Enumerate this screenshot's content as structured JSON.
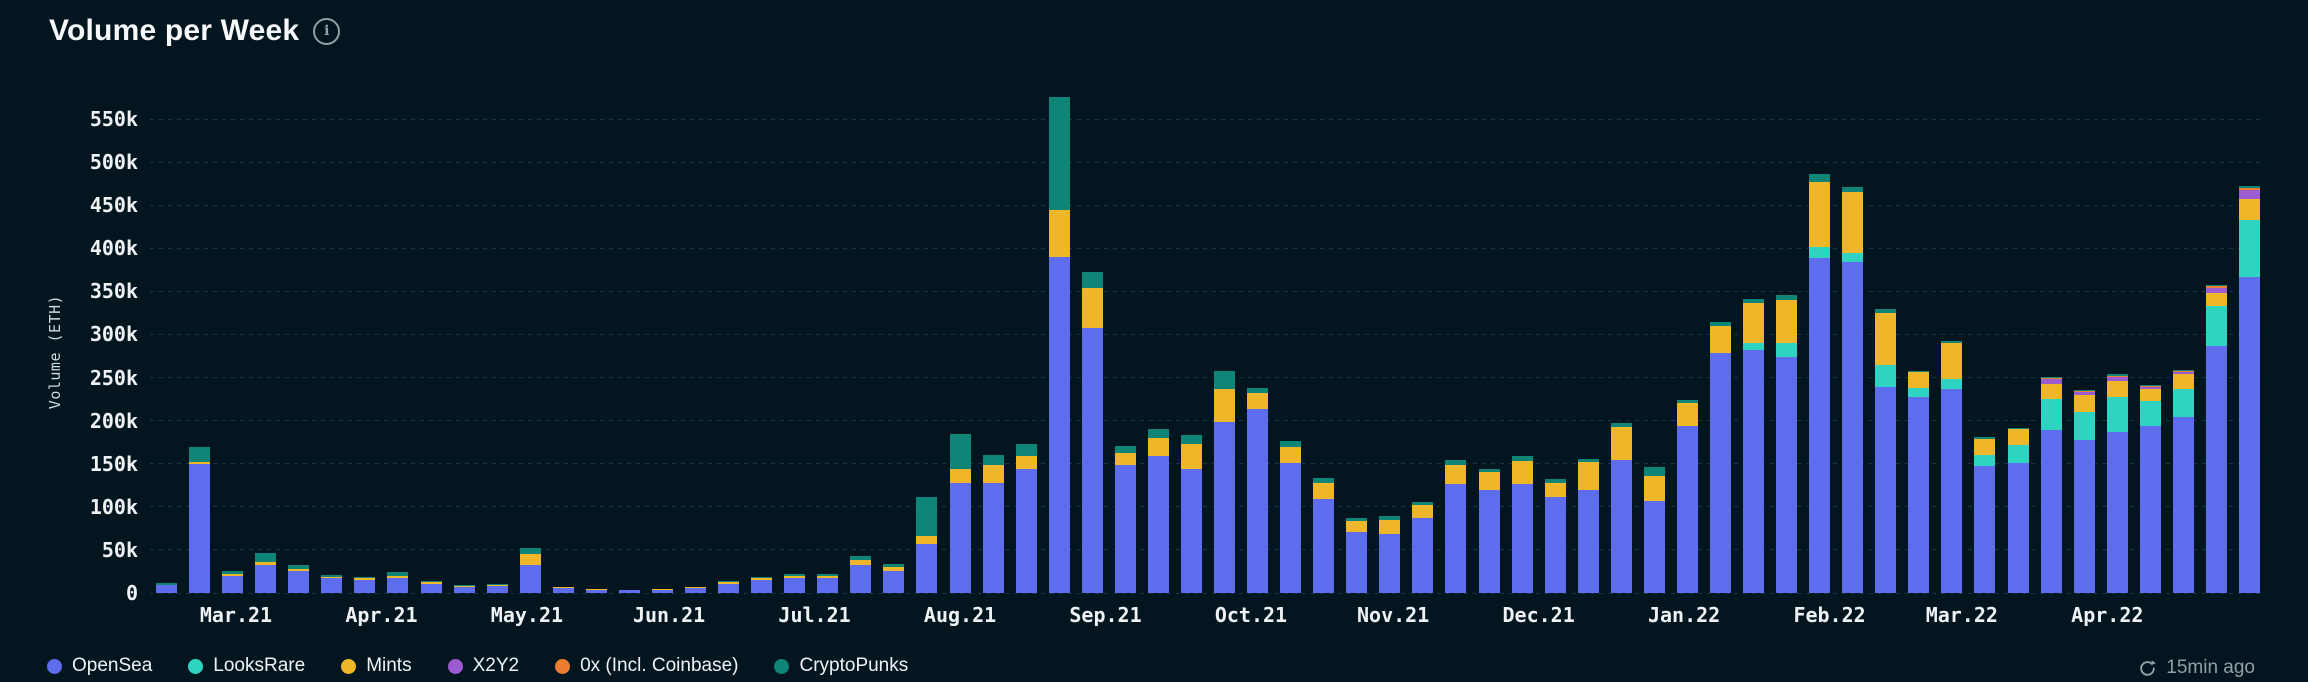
{
  "header": {
    "title": "Volume per Week"
  },
  "footer": {
    "updated": "15min ago"
  },
  "theme": {
    "background": "#03161f",
    "grid": "#163641",
    "text": "#eef2f4",
    "muted": "#8ea0a8",
    "title": "#f6f8f9"
  },
  "chart_data": {
    "type": "bar",
    "stacked": true,
    "title": "Volume per Week",
    "xlabel": "",
    "ylabel": "Volume (ETH)",
    "ylim": [
      0,
      550000
    ],
    "grid": true,
    "legend_position": "bottom",
    "n_weeks": 64,
    "y_ticks": [
      0,
      50000,
      100000,
      150000,
      200000,
      250000,
      300000,
      350000,
      400000,
      450000,
      500000,
      550000
    ],
    "y_tick_labels": [
      "0",
      "50k",
      "100k",
      "150k",
      "200k",
      "250k",
      "300k",
      "350k",
      "400k",
      "450k",
      "500k",
      "550k"
    ],
    "x_ticks": [
      {
        "label": "Mar.21",
        "index": 2.1
      },
      {
        "label": "Apr.21",
        "index": 6.5
      },
      {
        "label": "May.21",
        "index": 10.9
      },
      {
        "label": "Jun.21",
        "index": 15.2
      },
      {
        "label": "Jul.21",
        "index": 19.6
      },
      {
        "label": "Aug.21",
        "index": 24.0
      },
      {
        "label": "Sep.21",
        "index": 28.4
      },
      {
        "label": "Oct.21",
        "index": 32.8
      },
      {
        "label": "Nov.21",
        "index": 37.1
      },
      {
        "label": "Dec.21",
        "index": 41.5
      },
      {
        "label": "Jan.22",
        "index": 45.9
      },
      {
        "label": "Feb.22",
        "index": 50.3
      },
      {
        "label": "Mar.22",
        "index": 54.3
      },
      {
        "label": "Apr.22",
        "index": 58.7
      }
    ],
    "series": [
      {
        "name": "OpenSea",
        "color": "#5e6ded",
        "values": [
          9000,
          150000,
          20000,
          33000,
          25000,
          17000,
          15000,
          18000,
          11000,
          7500,
          8000,
          33000,
          5500,
          4000,
          3000,
          4000,
          5500,
          11000,
          15000,
          17000,
          17000,
          32000,
          26000,
          57000,
          128000,
          128000,
          144000,
          390000,
          308000,
          149000,
          159000,
          144000,
          199000,
          214000,
          151000,
          109000,
          71000,
          69000,
          87000,
          127000,
          119000,
          127000,
          111000,
          119000,
          154000,
          107000,
          194000,
          279000,
          282000,
          274000,
          389000,
          384000,
          239000,
          227000,
          237000,
          147000,
          151000,
          189000,
          177000,
          187000,
          194000,
          204000,
          287000,
          367000
        ]
      },
      {
        "name": "LooksRare",
        "color": "#2fd3c1",
        "values": [
          0,
          0,
          0,
          0,
          0,
          0,
          0,
          0,
          0,
          0,
          0,
          0,
          0,
          0,
          0,
          0,
          0,
          0,
          0,
          0,
          0,
          0,
          0,
          0,
          0,
          0,
          0,
          0,
          0,
          0,
          0,
          0,
          0,
          0,
          0,
          0,
          0,
          0,
          0,
          0,
          0,
          0,
          0,
          0,
          0,
          0,
          0,
          0,
          8000,
          16000,
          13000,
          11000,
          26000,
          11000,
          11000,
          13000,
          21000,
          36000,
          33000,
          41000,
          29000,
          33000,
          46000,
          66000
        ]
      },
      {
        "name": "Mints",
        "color": "#efb62a",
        "values": [
          500,
          2000,
          1500,
          3000,
          3000,
          2000,
          2000,
          2000,
          1500,
          1000,
          1000,
          12000,
          1000,
          500,
          500,
          500,
          1000,
          2000,
          2500,
          3000,
          3000,
          6000,
          4000,
          9000,
          16000,
          21000,
          15000,
          55000,
          46000,
          13000,
          21000,
          29000,
          38000,
          18000,
          19000,
          19000,
          13000,
          16000,
          15000,
          21000,
          21000,
          26000,
          17000,
          33000,
          39000,
          29000,
          26000,
          31000,
          46000,
          50000,
          75000,
          70000,
          60000,
          18000,
          42000,
          19000,
          18000,
          18000,
          20000,
          18000,
          14000,
          17000,
          15000,
          24000
        ]
      },
      {
        "name": "X2Y2",
        "color": "#9a5cd0",
        "values": [
          0,
          0,
          0,
          0,
          0,
          0,
          0,
          0,
          0,
          0,
          0,
          0,
          0,
          0,
          0,
          0,
          0,
          0,
          0,
          0,
          0,
          0,
          0,
          0,
          0,
          0,
          0,
          0,
          0,
          0,
          0,
          0,
          0,
          0,
          0,
          0,
          0,
          0,
          0,
          0,
          0,
          0,
          0,
          0,
          0,
          0,
          0,
          0,
          0,
          0,
          0,
          0,
          0,
          0,
          0,
          0,
          0,
          5000,
          3000,
          5000,
          2000,
          3000,
          6000,
          11000
        ]
      },
      {
        "name": "0x (Incl. Coinbase)",
        "color": "#ed7d31",
        "values": [
          0,
          0,
          0,
          0,
          0,
          0,
          0,
          0,
          0,
          0,
          0,
          0,
          0,
          0,
          0,
          0,
          0,
          0,
          0,
          0,
          0,
          0,
          0,
          0,
          0,
          0,
          0,
          0,
          0,
          0,
          0,
          0,
          0,
          0,
          0,
          0,
          0,
          0,
          0,
          0,
          0,
          0,
          0,
          0,
          0,
          0,
          0,
          0,
          0,
          0,
          0,
          0,
          0,
          0,
          0,
          0,
          0,
          1000,
          1000,
          1000,
          1000,
          1000,
          2000,
          2000
        ]
      },
      {
        "name": "CryptoPunks",
        "color": "#0e8577",
        "values": [
          2500,
          18000,
          4500,
          10000,
          5000,
          2000,
          2000,
          4000,
          1500,
          500,
          1000,
          7000,
          500,
          500,
          500,
          500,
          500,
          1000,
          1500,
          2000,
          2000,
          5000,
          4000,
          46000,
          41000,
          11000,
          14000,
          130000,
          19000,
          9000,
          10000,
          10000,
          21000,
          6000,
          6000,
          5000,
          3000,
          4000,
          4000,
          6000,
          4000,
          6000,
          4000,
          4000,
          4000,
          10000,
          4000,
          5000,
          5000,
          6000,
          9000,
          6000,
          5000,
          2000,
          3000,
          2000,
          2000,
          2000,
          2000,
          2000,
          1000,
          1000,
          2000,
          2000
        ]
      }
    ]
  }
}
